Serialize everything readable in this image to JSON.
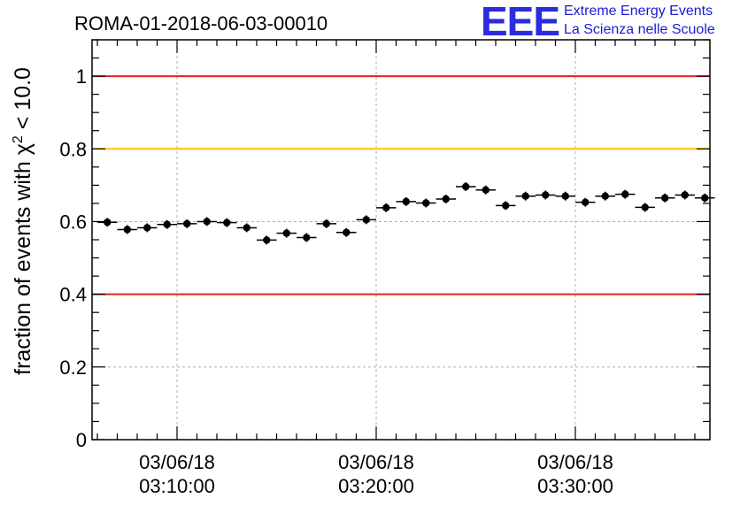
{
  "logo": {
    "mark": "EEE",
    "line1": "Extreme Energy Events",
    "line2": "La Scienza nelle Scuole",
    "color": "#2b2be0"
  },
  "chart_data": {
    "type": "scatter",
    "title": "ROMA-01-2018-06-03-00010",
    "ylabel_prefix": "fraction of events with χ",
    "ylabel_sup": "2",
    "ylabel_suffix": " < 10.0",
    "ylim": [
      0,
      1.1
    ],
    "yticks": [
      {
        "v": 0,
        "label": "0"
      },
      {
        "v": 0.2,
        "label": "0.2"
      },
      {
        "v": 0.4,
        "label": "0.4"
      },
      {
        "v": 0.6,
        "label": "0.6"
      },
      {
        "v": 0.8,
        "label": "0.8"
      },
      {
        "v": 1.0,
        "label": "1"
      }
    ],
    "xlim_minutes": [
      0,
      30.5
    ],
    "xticks": [
      {
        "m": 4,
        "date": "03/06/18",
        "time": "03:10:00"
      },
      {
        "m": 14,
        "date": "03/06/18",
        "time": "03:20:00"
      },
      {
        "m": 24,
        "date": "03/06/18",
        "time": "03:30:00"
      }
    ],
    "grid": true,
    "reference_lines": [
      {
        "y": 1.0,
        "color": "#e8201c"
      },
      {
        "y": 0.8,
        "color": "#ffc000"
      },
      {
        "y": 0.4,
        "color": "#e8201c"
      }
    ],
    "bin_width_minutes": 1,
    "values": [
      0.598,
      0.578,
      0.583,
      0.592,
      0.594,
      0.6,
      0.597,
      0.583,
      0.549,
      0.568,
      0.556,
      0.594,
      0.57,
      0.605,
      0.638,
      0.655,
      0.651,
      0.662,
      0.696,
      0.687,
      0.644,
      0.67,
      0.673,
      0.67,
      0.653,
      0.67,
      0.675,
      0.639,
      0.665,
      0.673,
      0.665
    ]
  }
}
